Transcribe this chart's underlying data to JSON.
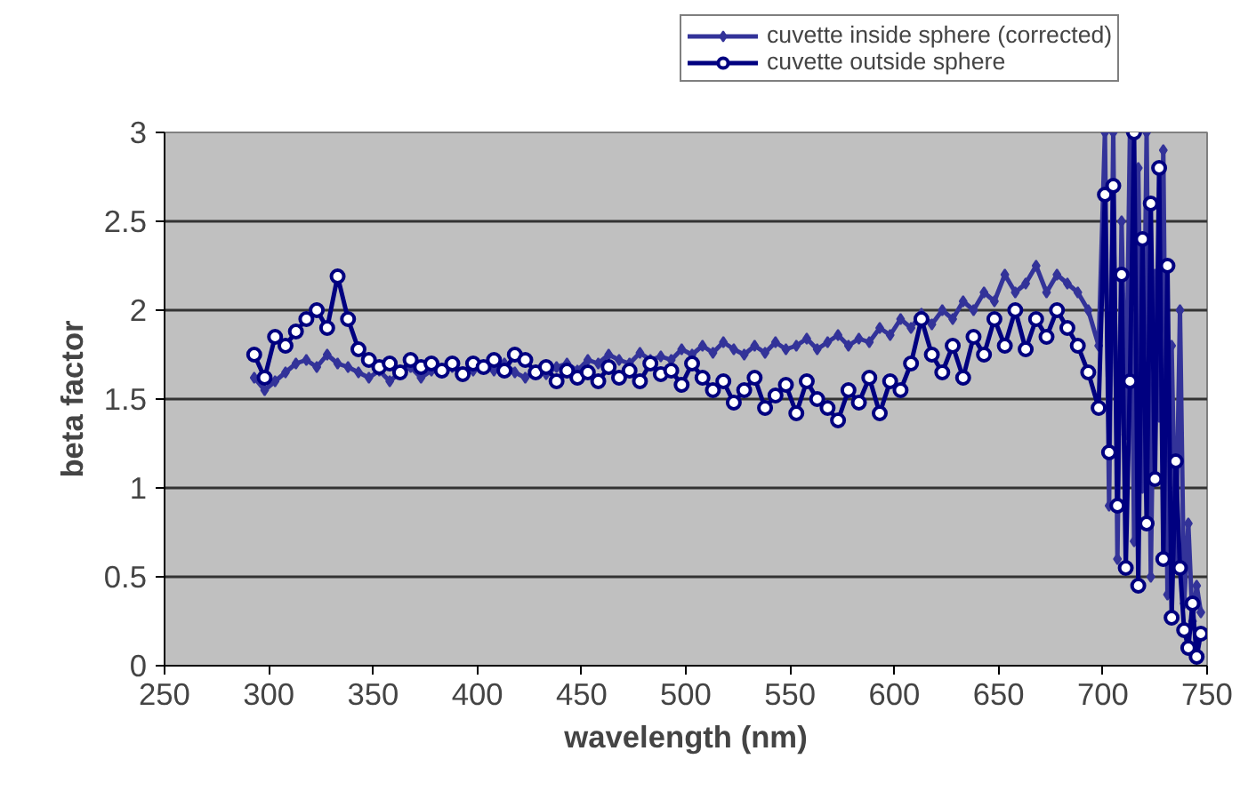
{
  "chart_data": {
    "type": "line",
    "xlabel": "wavelength (nm)",
    "ylabel": "beta factor",
    "xlim": [
      250,
      750
    ],
    "xticks": [
      250,
      300,
      350,
      400,
      450,
      500,
      550,
      600,
      650,
      700,
      750
    ],
    "ylim": [
      0,
      3
    ],
    "yticks": [
      0,
      0.5,
      1,
      1.5,
      2,
      2.5,
      3
    ],
    "grid": "y",
    "legend": "top right",
    "x": [
      293,
      298,
      303,
      308,
      313,
      318,
      323,
      328,
      333,
      338,
      343,
      348,
      353,
      358,
      363,
      368,
      373,
      378,
      383,
      388,
      393,
      398,
      403,
      408,
      413,
      418,
      423,
      428,
      433,
      438,
      443,
      448,
      453,
      458,
      463,
      468,
      473,
      478,
      483,
      488,
      493,
      498,
      503,
      508,
      513,
      518,
      523,
      528,
      533,
      538,
      543,
      548,
      553,
      558,
      563,
      568,
      573,
      578,
      583,
      588,
      593,
      598,
      603,
      608,
      613,
      618,
      623,
      628,
      633,
      638,
      643,
      648,
      653,
      658,
      663,
      668,
      673,
      678,
      683,
      688,
      693,
      698,
      701,
      703,
      705,
      707,
      709,
      711,
      713,
      715,
      717,
      719,
      721,
      723,
      725,
      727,
      729,
      731,
      733,
      735,
      737,
      739,
      741,
      743,
      745,
      747
    ],
    "series": [
      {
        "name": "cuvette inside sphere (corrected)",
        "color": "#333399",
        "marker": "diamond",
        "values": [
          1.62,
          1.55,
          1.6,
          1.65,
          1.7,
          1.72,
          1.68,
          1.75,
          1.7,
          1.68,
          1.65,
          1.62,
          1.66,
          1.6,
          1.65,
          1.68,
          1.62,
          1.66,
          1.65,
          1.68,
          1.64,
          1.66,
          1.68,
          1.66,
          1.7,
          1.65,
          1.62,
          1.66,
          1.64,
          1.68,
          1.7,
          1.66,
          1.72,
          1.7,
          1.75,
          1.72,
          1.7,
          1.76,
          1.72,
          1.74,
          1.72,
          1.78,
          1.75,
          1.8,
          1.76,
          1.82,
          1.78,
          1.75,
          1.8,
          1.76,
          1.82,
          1.78,
          1.8,
          1.84,
          1.78,
          1.82,
          1.86,
          1.8,
          1.84,
          1.82,
          1.9,
          1.86,
          1.95,
          1.9,
          1.98,
          1.92,
          2.0,
          1.95,
          2.05,
          2.0,
          2.1,
          2.05,
          2.2,
          2.1,
          2.15,
          2.25,
          2.1,
          2.2,
          2.15,
          2.1,
          2.0,
          1.8,
          3.0,
          0.9,
          3.0,
          0.6,
          2.5,
          1.3,
          3.0,
          0.7,
          2.8,
          1.0,
          3.0,
          0.5,
          2.2,
          1.4,
          2.9,
          0.4,
          1.8,
          0.6,
          2.0,
          0.35,
          0.8,
          0.25,
          0.45,
          0.3
        ]
      },
      {
        "name": "cuvette outside sphere",
        "color": "#000080",
        "marker": "circle",
        "values": [
          1.75,
          1.62,
          1.85,
          1.8,
          1.88,
          1.95,
          2.0,
          1.9,
          2.19,
          1.95,
          1.78,
          1.72,
          1.68,
          1.7,
          1.65,
          1.72,
          1.68,
          1.7,
          1.66,
          1.7,
          1.64,
          1.7,
          1.68,
          1.72,
          1.66,
          1.75,
          1.72,
          1.65,
          1.68,
          1.6,
          1.66,
          1.62,
          1.65,
          1.6,
          1.68,
          1.62,
          1.66,
          1.6,
          1.7,
          1.64,
          1.66,
          1.58,
          1.7,
          1.62,
          1.55,
          1.6,
          1.48,
          1.55,
          1.62,
          1.45,
          1.52,
          1.58,
          1.42,
          1.6,
          1.5,
          1.45,
          1.38,
          1.55,
          1.48,
          1.62,
          1.42,
          1.6,
          1.55,
          1.7,
          1.95,
          1.75,
          1.65,
          1.8,
          1.62,
          1.85,
          1.75,
          1.95,
          1.8,
          2.0,
          1.78,
          1.95,
          1.85,
          2.0,
          1.9,
          1.8,
          1.65,
          1.45,
          2.65,
          1.2,
          2.7,
          0.9,
          2.2,
          0.55,
          1.6,
          3.0,
          0.45,
          2.4,
          0.8,
          2.6,
          1.05,
          2.8,
          0.6,
          2.25,
          0.27,
          1.15,
          0.55,
          0.2,
          0.1,
          0.35,
          0.05,
          0.18
        ]
      }
    ]
  }
}
